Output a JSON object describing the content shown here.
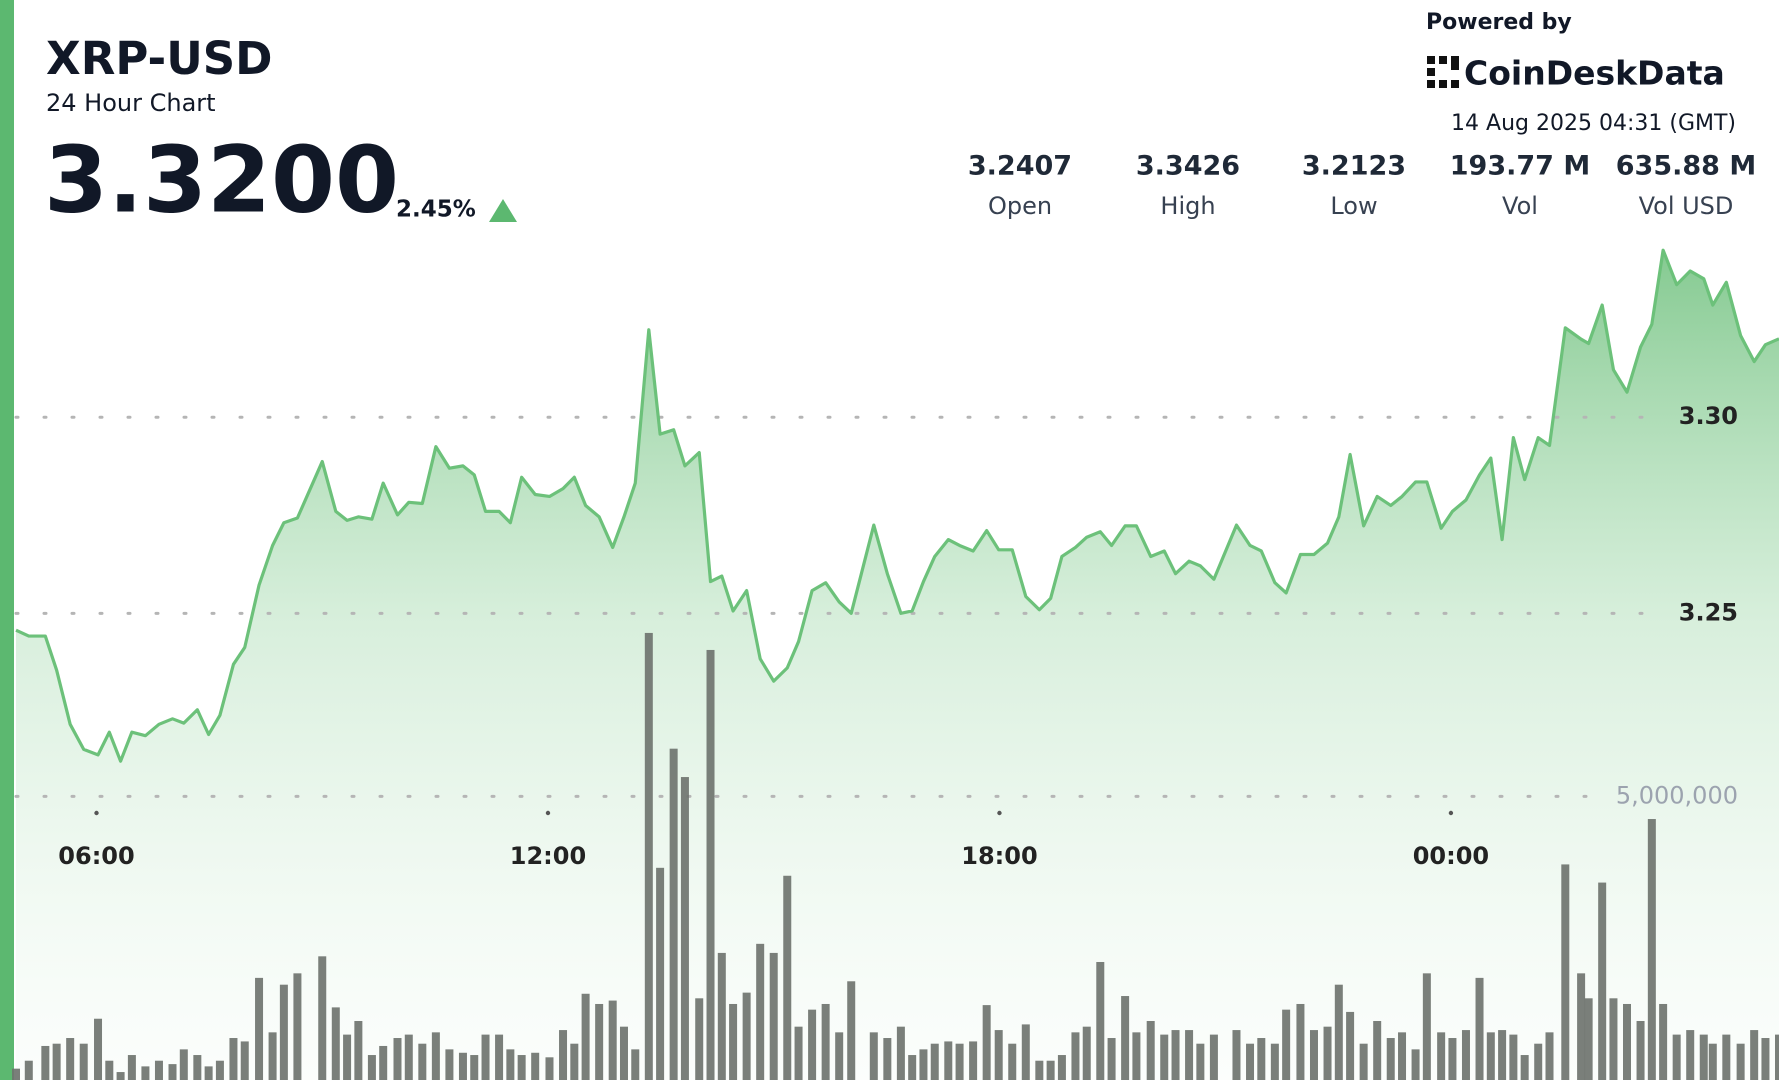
{
  "header": {
    "title": "XRP-USD",
    "subtitle": "24 Hour Chart",
    "price": "3.3200",
    "change": "2.45%",
    "powered_by": "Powered by",
    "brand": "CoinDeskData",
    "timestamp": "14 Aug 2025 04:31 (GMT)"
  },
  "stats": [
    {
      "value": "3.2407",
      "label": "Open"
    },
    {
      "value": "3.3426",
      "label": "High"
    },
    {
      "value": "3.2123",
      "label": "Low"
    },
    {
      "value": "193.77 M",
      "label": "Vol"
    },
    {
      "value": "635.88 M",
      "label": "Vol USD"
    }
  ],
  "chart_data": {
    "type": "line",
    "area": true,
    "grid": true,
    "x": [
      4.93,
      5.1,
      5.32,
      5.47,
      5.65,
      5.83,
      6.02,
      6.17,
      6.32,
      6.47,
      6.65,
      6.83,
      7.01,
      7.16,
      7.34,
      7.49,
      7.64,
      7.82,
      7.97,
      8.16,
      8.34,
      8.49,
      8.67,
      9.0,
      9.18,
      9.33,
      9.48,
      9.66,
      9.81,
      10.0,
      10.15,
      10.33,
      10.51,
      10.69,
      10.87,
      11.02,
      11.17,
      11.35,
      11.5,
      11.65,
      11.83,
      12.02,
      12.2,
      12.35,
      12.5,
      12.68,
      12.86,
      13.01,
      13.16,
      13.34,
      13.49,
      13.67,
      13.82,
      14.01,
      14.16,
      14.31,
      14.46,
      14.64,
      14.82,
      15.0,
      15.18,
      15.33,
      15.51,
      15.69,
      15.87,
      16.03,
      16.33,
      16.51,
      16.69,
      16.84,
      16.99,
      17.14,
      17.32,
      17.47,
      17.65,
      17.83,
      17.99,
      18.17,
      18.35,
      18.53,
      18.68,
      18.83,
      19.01,
      19.16,
      19.34,
      19.49,
      19.67,
      19.82,
      20.01,
      20.19,
      20.34,
      20.52,
      20.67,
      20.85,
      21.15,
      21.33,
      21.48,
      21.66,
      21.81,
      22.0,
      22.18,
      22.36,
      22.51,
      22.66,
      22.84,
      23.02,
      23.2,
      23.35,
      23.53,
      23.68,
      23.87,
      24.02,
      24.2,
      24.38,
      24.53,
      24.68,
      24.83,
      24.98,
      25.16,
      25.31,
      25.52,
      25.73,
      25.83,
      26.01,
      26.16,
      26.34,
      26.52,
      26.67,
      26.82,
      27.0,
      27.18,
      27.36,
      27.48,
      27.66,
      27.85,
      28.03,
      28.18,
      28.36
    ],
    "series": [
      {
        "color": "#6cc17a",
        "values": [
          3.2457,
          3.2442,
          3.2442,
          3.2355,
          3.2217,
          3.2153,
          3.2139,
          3.2197,
          3.2123,
          3.2197,
          3.2188,
          3.2217,
          3.2231,
          3.222,
          3.2254,
          3.2191,
          3.224,
          3.237,
          3.2413,
          3.2572,
          3.2673,
          3.2731,
          3.2743,
          3.2887,
          3.276,
          3.2737,
          3.2746,
          3.274,
          3.2832,
          3.2751,
          3.2783,
          3.278,
          3.2925,
          3.287,
          3.2876,
          3.2853,
          3.276,
          3.276,
          3.2731,
          3.2847,
          3.2803,
          3.2798,
          3.2818,
          3.2847,
          3.2775,
          3.2746,
          3.2668,
          3.2746,
          3.2832,
          3.3223,
          3.2957,
          3.2968,
          3.2876,
          3.291,
          3.2581,
          3.2595,
          3.2506,
          3.2558,
          3.2384,
          3.2327,
          3.2361,
          3.2428,
          3.2558,
          3.2578,
          3.2529,
          3.25,
          3.2725,
          3.2601,
          3.25,
          3.2506,
          3.2581,
          3.2645,
          3.2688,
          3.2673,
          3.2659,
          3.2711,
          3.2662,
          3.2662,
          3.2543,
          3.2509,
          3.2538,
          3.2645,
          3.2668,
          3.2694,
          3.2708,
          3.2673,
          3.2723,
          3.2723,
          3.2645,
          3.2659,
          3.2601,
          3.2633,
          3.2621,
          3.2587,
          3.2725,
          3.2673,
          3.2659,
          3.2578,
          3.2552,
          3.265,
          3.265,
          3.2679,
          3.2746,
          3.2905,
          3.2723,
          3.2798,
          3.2775,
          3.2798,
          3.2835,
          3.2835,
          3.2717,
          3.276,
          3.2789,
          3.2853,
          3.2896,
          3.2688,
          3.2948,
          3.2841,
          3.2948,
          3.2928,
          3.3228,
          3.3199,
          3.3188,
          3.3286,
          3.3121,
          3.3064,
          3.3179,
          3.3237,
          3.3426,
          3.3338,
          3.3373,
          3.3353,
          3.3286,
          3.3344,
          3.3208,
          3.3142,
          3.3185,
          3.32
        ]
      },
      {
        "type": "bar",
        "axis": "y2",
        "color": "#6f746f",
        "values": [
          200000,
          340000,
          600000,
          640000,
          740000,
          640000,
          1080000,
          340000,
          140000,
          440000,
          240000,
          340000,
          280000,
          540000,
          440000,
          240000,
          340000,
          740000,
          680000,
          1800000,
          840000,
          1680000,
          1880000,
          2180000,
          1280000,
          800000,
          1040000,
          440000,
          600000,
          740000,
          800000,
          640000,
          840000,
          540000,
          480000,
          440000,
          800000,
          800000,
          540000,
          440000,
          480000,
          400000,
          880000,
          640000,
          1520000,
          1340000,
          1400000,
          940000,
          540000,
          7880000,
          3740000,
          5840000,
          5340000,
          1440000,
          7580000,
          2240000,
          1340000,
          1540000,
          2400000,
          2240000,
          3600000,
          940000,
          1240000,
          1340000,
          840000,
          1740000,
          840000,
          740000,
          940000,
          440000,
          540000,
          640000,
          680000,
          640000,
          680000,
          1320000,
          880000,
          640000,
          980000,
          340000,
          340000,
          440000,
          840000,
          940000,
          2080000,
          740000,
          1480000,
          840000,
          1040000,
          800000,
          880000,
          880000,
          640000,
          800000,
          880000,
          640000,
          740000,
          640000,
          1240000,
          1340000,
          880000,
          940000,
          1680000,
          1200000,
          640000,
          1040000,
          740000,
          840000,
          540000,
          1880000,
          840000,
          740000,
          880000,
          1800000,
          840000,
          880000,
          800000,
          440000,
          640000,
          840000,
          3800000,
          1880000,
          1440000,
          3480000,
          1440000,
          1340000,
          1040000,
          4600000,
          1340000,
          800000,
          880000,
          800000,
          640000,
          800000,
          640000,
          880000,
          740000,
          800000
        ]
      }
    ],
    "xlim": [
      4.93,
      28.36
    ],
    "xticks": [
      {
        "value": 6,
        "label": "06:00"
      },
      {
        "value": 12,
        "label": "12:00"
      },
      {
        "value": 18,
        "label": "18:00"
      },
      {
        "value": 24,
        "label": "00:00"
      }
    ],
    "ylim": [
      3.131,
      3.348
    ],
    "yticks": [
      3.25,
      {
        "value": 3.3,
        "label": "3.30"
      }
    ],
    "y2lim": [
      0,
      15000000
    ],
    "y2ticks": [
      {
        "value": 5000000,
        "label": "5,000,000"
      }
    ]
  }
}
